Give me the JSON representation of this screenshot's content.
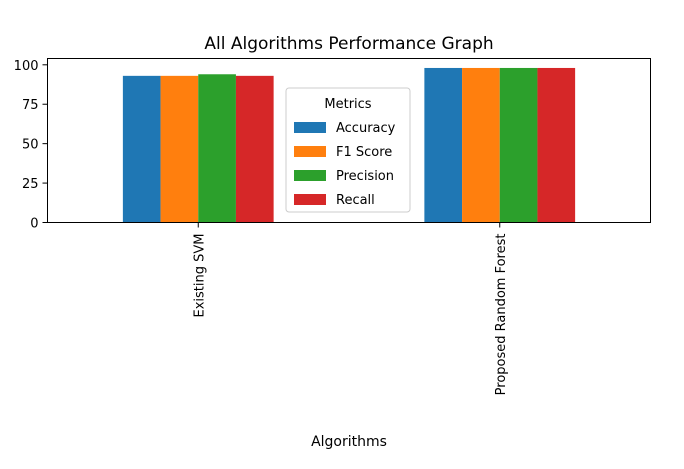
{
  "chart_data": {
    "type": "bar",
    "title": "All Algorithms Performance Graph",
    "xlabel": "Algorithms",
    "ylabel": "",
    "categories": [
      "Existing SVM",
      "Proposed Random Forest"
    ],
    "series": [
      {
        "name": "Accuracy",
        "values": [
          93.0,
          98.0
        ],
        "color": "#1f77b4"
      },
      {
        "name": "F1 Score",
        "values": [
          93.0,
          98.0
        ],
        "color": "#ff7f0e"
      },
      {
        "name": "Precision",
        "values": [
          94.0,
          98.0
        ],
        "color": "#2ca02c"
      },
      {
        "name": "Recall",
        "values": [
          93.0,
          98.0
        ],
        "color": "#d62728"
      }
    ],
    "ylim": [
      0,
      104
    ],
    "yticks": [
      0,
      25,
      50,
      75,
      100
    ],
    "grid": false,
    "legend": {
      "title": "Metrics",
      "placement": "center"
    }
  }
}
